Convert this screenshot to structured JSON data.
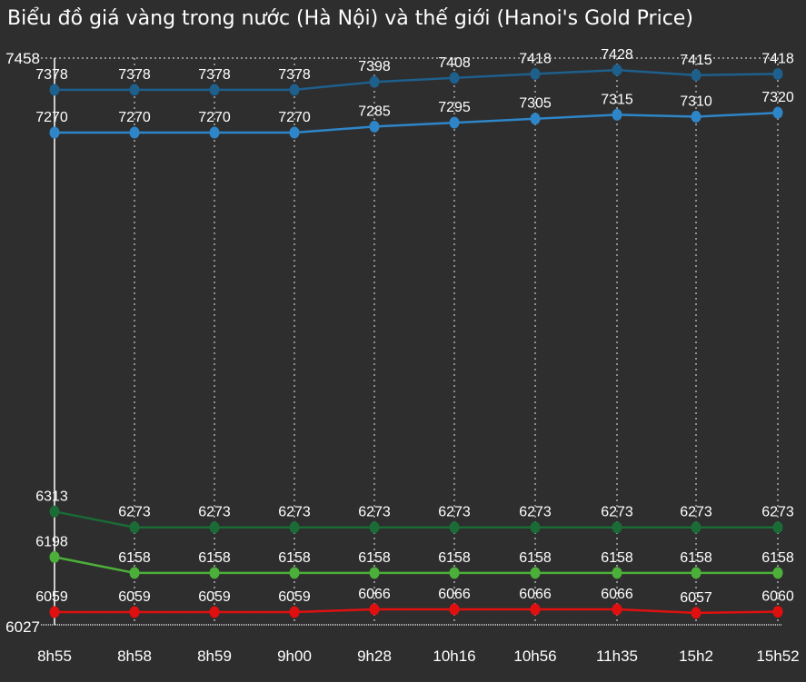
{
  "title": "Biểu đồ giá vàng trong nước (Hà Nội) và thế giới (Hanoi's Gold Price)",
  "chart_data": {
    "type": "line",
    "title": "Biểu đồ giá vàng trong nước (Hà Nội) và thế giới (Hanoi's Gold Price)",
    "categories": [
      "8h55",
      "8h58",
      "8h59",
      "9h00",
      "9h28",
      "10h16",
      "10h56",
      "11h35",
      "15h2",
      "15h52"
    ],
    "ylim": [
      6027,
      7458
    ],
    "ytick_labels": [
      "7458",
      "6027"
    ],
    "grid": "vertical-dotted",
    "series": [
      {
        "color": "#1e5f8c",
        "values": [
          7378,
          7378,
          7378,
          7378,
          7398,
          7408,
          7418,
          7428,
          7415,
          7418
        ]
      },
      {
        "color": "#2e86c9",
        "values": [
          7270,
          7270,
          7270,
          7270,
          7285,
          7295,
          7305,
          7315,
          7310,
          7320
        ]
      },
      {
        "color": "#1a6b35",
        "values": [
          6313,
          6273,
          6273,
          6273,
          6273,
          6273,
          6273,
          6273,
          6273,
          6273
        ]
      },
      {
        "color": "#4caf3a",
        "values": [
          6198,
          6158,
          6158,
          6158,
          6158,
          6158,
          6158,
          6158,
          6158,
          6158
        ]
      },
      {
        "color": "#e01010",
        "values": [
          6059,
          6059,
          6059,
          6059,
          6066,
          6066,
          6066,
          6066,
          6057,
          6060
        ]
      }
    ]
  }
}
